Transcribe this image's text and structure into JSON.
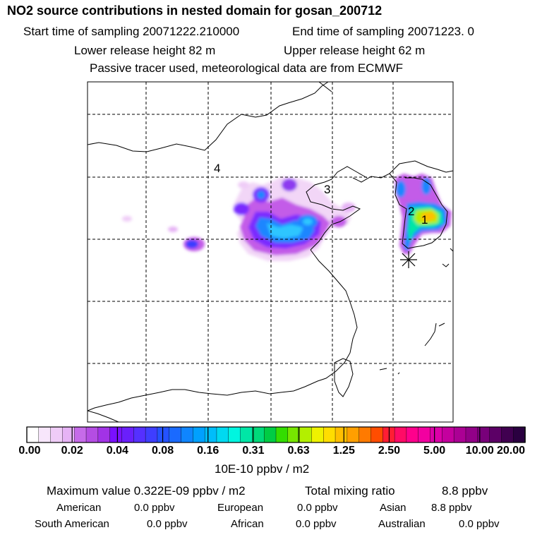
{
  "header": {
    "title": "NO2 source contributions in nested domain for gosan_200712",
    "start_time": "Start time of sampling 20071222.210000",
    "end_time": "End time of sampling 20071223.     0",
    "lower_release": "Lower release height   82 m",
    "upper_release": "Upper release height   62 m",
    "tracer_note": "Passive tracer used, meteorological data are from ECMWF"
  },
  "map": {
    "region_labels": [
      "4",
      "3",
      "2",
      "1"
    ],
    "receptor_marker": "asterisk-icon"
  },
  "colorbar": {
    "ticks": [
      "0.00",
      "0.02",
      "0.04",
      "0.08",
      "0.16",
      "0.31",
      "0.63",
      "1.25",
      "2.50",
      "5.00",
      "10.00",
      "20.00"
    ],
    "colors": [
      "#ffffff",
      "#f7e6fb",
      "#efccf7",
      "#e6b3f5",
      "#c66be9",
      "#b44de3",
      "#a233e6",
      "#7a10ff",
      "#6a1ffb",
      "#5530ff",
      "#3e3eff",
      "#2452ff",
      "#1a6aff",
      "#0f85ff",
      "#00a0ff",
      "#00bdfa",
      "#00d9f0",
      "#00f5e0",
      "#00e6a6",
      "#00d97a",
      "#00cc44",
      "#33dd00",
      "#77e600",
      "#b3ef00",
      "#eef200",
      "#ffdd00",
      "#ffbf00",
      "#ff9f00",
      "#ff7a00",
      "#ff4d00",
      "#ff1e33",
      "#ff0b66",
      "#ff008c",
      "#f200a0",
      "#dc00a8",
      "#c4009e",
      "#ab0094",
      "#920088",
      "#78007a",
      "#5c0066",
      "#400050",
      "#2a0040"
    ],
    "unit": "10E-10 ppbv / m2"
  },
  "stats": {
    "maximum": "Maximum value  0.322E-09 ppbv / m2",
    "total_mixing": "Total mixing ratio",
    "total_value": "8.8 ppbv",
    "contributions": [
      {
        "name": "American",
        "value": "0.0 ppbv"
      },
      {
        "name": "European",
        "value": "0.0 ppbv"
      },
      {
        "name": "Asian",
        "value": "8.8 ppbv"
      },
      {
        "name": "South American",
        "value": "0.0 ppbv"
      },
      {
        "name": "African",
        "value": "0.0 ppbv"
      },
      {
        "name": "Australian",
        "value": "0.0 ppbv"
      }
    ]
  }
}
